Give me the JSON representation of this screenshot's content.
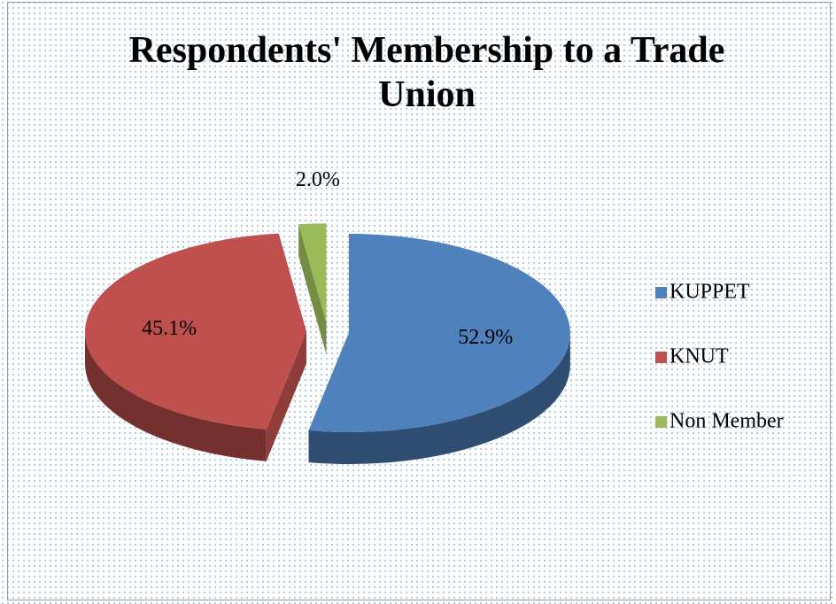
{
  "chart_data": {
    "type": "pie3d",
    "title": "Respondents' Membership to a Trade Union",
    "categories": [
      "KUPPET",
      "KNUT",
      "Non Member"
    ],
    "values": [
      52.9,
      45.1,
      2.0
    ],
    "value_labels": [
      "52.9%",
      "45.1%",
      "2.0%"
    ],
    "colors": [
      "#4f81bd",
      "#c0504d",
      "#9bbb59"
    ],
    "legend": "right"
  }
}
